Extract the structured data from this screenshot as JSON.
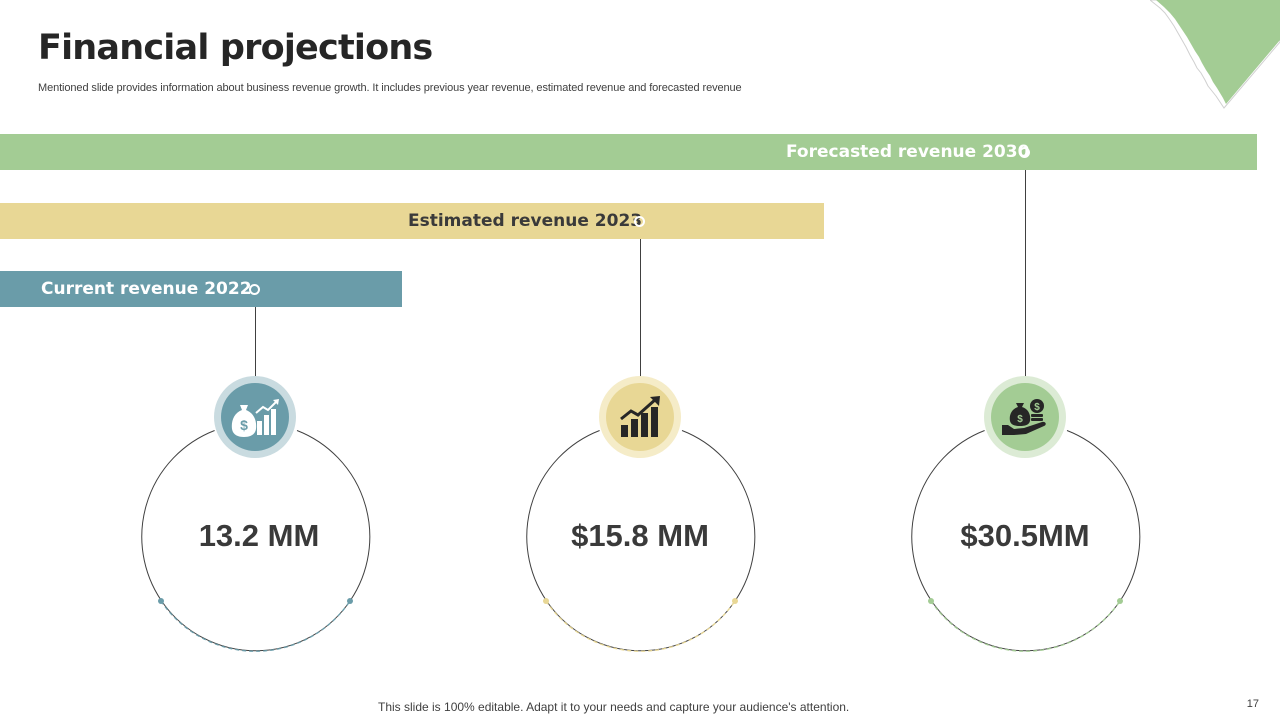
{
  "slide": {
    "title": "Financial projections",
    "subtitle": "Mentioned slide provides information about business revenue growth. It includes previous year revenue, estimated revenue and forecasted revenue",
    "footer": "This slide is 100% editable. Adapt it to your needs and capture your audience's attention.",
    "page_number": "17"
  },
  "stages": [
    {
      "label": "Current revenue 2022",
      "value": "13.2 MM",
      "icon": "money-bag-chart-icon",
      "color": "#6a9ca9"
    },
    {
      "label": "Estimated revenue 2023",
      "value": "$15.8 MM",
      "icon": "growth-bar-chart-icon",
      "color": "#e8d795"
    },
    {
      "label": "Forecasted revenue 2030",
      "value": "$30.5MM",
      "icon": "hand-money-bag-icon",
      "color": "#a3cc94"
    }
  ],
  "colors": {
    "blue": "#6a9ca9",
    "yellow": "#e8d795",
    "green": "#a3cc94",
    "text_dark": "#262626"
  }
}
